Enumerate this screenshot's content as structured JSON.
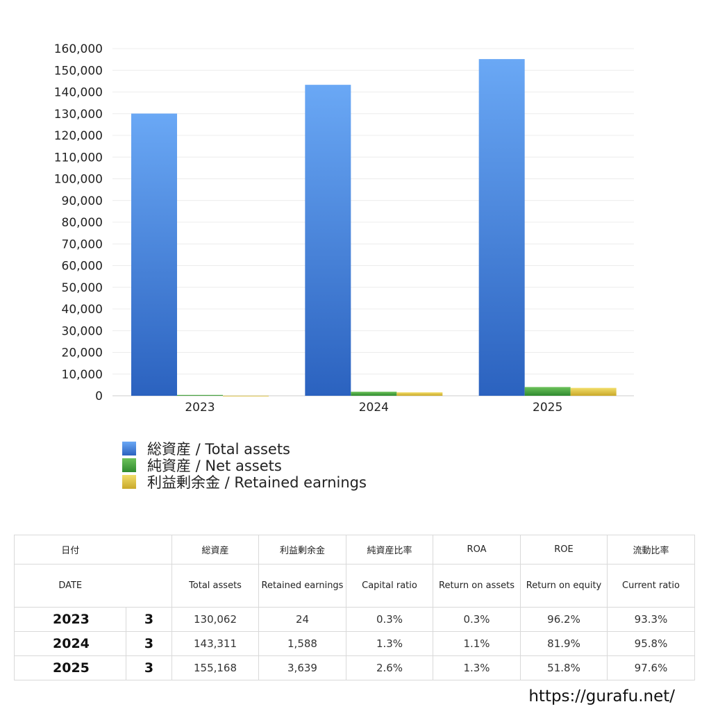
{
  "chart_data": {
    "type": "bar",
    "categories": [
      "2023",
      "2024",
      "2025"
    ],
    "series": [
      {
        "name": "総資産 / Total assets",
        "values": [
          130062,
          143311,
          155168
        ],
        "color": "#4a86e0"
      },
      {
        "name": "純資産 / Net assets",
        "values": [
          390,
          1863,
          4034
        ],
        "color": "#4caf50"
      },
      {
        "name": "利益剰余金 / Retained earnings",
        "values": [
          24,
          1588,
          3639
        ],
        "color": "#e6c84a"
      }
    ],
    "yticks": [
      "0",
      "10,000",
      "20,000",
      "30,000",
      "40,000",
      "50,000",
      "60,000",
      "70,000",
      "80,000",
      "90,000",
      "100,000",
      "110,000",
      "120,000",
      "130,000",
      "140,000",
      "150,000",
      "160,000"
    ],
    "ylim": [
      0,
      160000
    ],
    "grid": true,
    "legend_position": "bottom"
  },
  "table": {
    "headers_jp": [
      "日付",
      "",
      "総資産",
      "利益剰余金",
      "純資産比率",
      "ROA",
      "ROE",
      "流動比率"
    ],
    "headers_en": [
      "DATE",
      "",
      "Total assets",
      "Retained earnings",
      "Capital ratio",
      "Return on assets",
      "Return on equity",
      "Current ratio"
    ],
    "rows": [
      [
        "2023",
        "3",
        "130,062",
        "24",
        "0.3%",
        "0.3%",
        "96.2%",
        "93.3%"
      ],
      [
        "2024",
        "3",
        "143,311",
        "1,588",
        "1.3%",
        "1.1%",
        "81.9%",
        "95.8%"
      ],
      [
        "2025",
        "3",
        "155,168",
        "3,639",
        "2.6%",
        "1.3%",
        "51.8%",
        "97.6%"
      ]
    ]
  },
  "footer": {
    "url": "https://gurafu.net/"
  }
}
